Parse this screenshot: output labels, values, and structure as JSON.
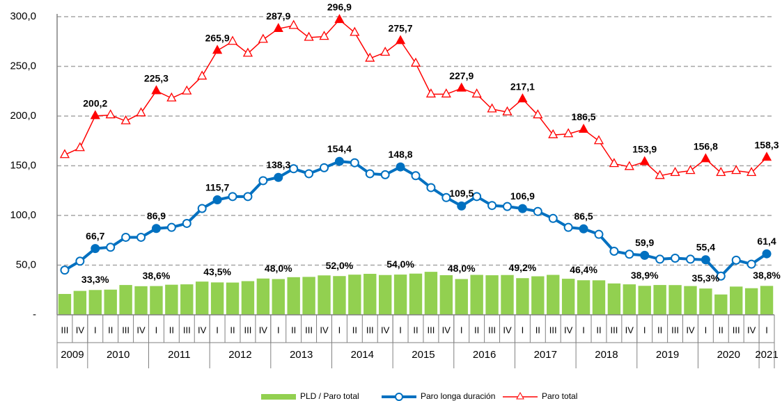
{
  "chart_data": {
    "type": "combo",
    "categories": [
      "III",
      "IV",
      "I",
      "II",
      "III",
      "IV",
      "I",
      "II",
      "III",
      "IV",
      "I",
      "II",
      "III",
      "IV",
      "I",
      "II",
      "III",
      "IV",
      "I",
      "II",
      "III",
      "IV",
      "I",
      "II",
      "III",
      "IV",
      "I",
      "II",
      "III",
      "IV",
      "I",
      "II",
      "III",
      "IV",
      "I",
      "II",
      "III",
      "IV",
      "I",
      "II",
      "III",
      "IV",
      "I",
      "II",
      "III",
      "IV",
      "I"
    ],
    "years": [
      "2009",
      "2010",
      "2011",
      "2012",
      "2013",
      "2014",
      "2015",
      "2016",
      "2017",
      "2018",
      "2019",
      "2020",
      "2021"
    ],
    "ylim": [
      0,
      300
    ],
    "yticks": [
      {
        "value": 0,
        "label": "-"
      },
      {
        "value": 50,
        "label": "50,0"
      },
      {
        "value": 100,
        "label": "100,0"
      },
      {
        "value": 150,
        "label": "150,0"
      },
      {
        "value": 200,
        "label": "200,0"
      },
      {
        "value": 250,
        "label": "250,0"
      },
      {
        "value": 300,
        "label": "300,0"
      }
    ],
    "y2lim": [
      0,
      400
    ],
    "grid": true,
    "legend": "bottom",
    "series": [
      {
        "name": "PLD / Paro total",
        "type": "bar",
        "axis": "y2",
        "color": "#92d050",
        "values": [
          28.0,
          32.1,
          33.3,
          33.8,
          40.0,
          38.4,
          38.6,
          40.4,
          40.9,
          44.6,
          43.5,
          43.3,
          45.2,
          48.7,
          48.0,
          50.5,
          50.9,
          52.9,
          52.0,
          53.9,
          55.0,
          53.4,
          54.0,
          55.3,
          57.7,
          53.2,
          48.0,
          53.6,
          53.1,
          53.4,
          49.2,
          51.7,
          53.6,
          48.4,
          46.4,
          46.3,
          42.1,
          40.9,
          38.9,
          40.0,
          39.9,
          38.6,
          35.3,
          27.3,
          37.9,
          35.7,
          38.8
        ],
        "value_labels": [
          null,
          null,
          "33,3%",
          null,
          null,
          null,
          "38,6%",
          null,
          null,
          null,
          "43,5%",
          null,
          null,
          null,
          "48,0%",
          null,
          null,
          null,
          "52,0%",
          null,
          null,
          null,
          "54,0%",
          null,
          null,
          null,
          "48,0%",
          null,
          null,
          null,
          "49,2%",
          null,
          null,
          null,
          "46,4%",
          null,
          null,
          null,
          "38,9%",
          null,
          null,
          null,
          "35,3%",
          null,
          null,
          null,
          "38,8%"
        ]
      },
      {
        "name": "Paro longa duración",
        "type": "line",
        "marker": "circle",
        "color": "#0070c0",
        "values": [
          45,
          54,
          66.7,
          68,
          78,
          78,
          86.9,
          88,
          92,
          107,
          115.7,
          119,
          119,
          135,
          138.3,
          147,
          142,
          148,
          154.4,
          153,
          142,
          141,
          148.8,
          140,
          128,
          118,
          109.5,
          119,
          110,
          109,
          106.9,
          104,
          97,
          88,
          86.5,
          81,
          64,
          61,
          59.9,
          56,
          57,
          56,
          55.4,
          39,
          55,
          51,
          61.4
        ],
        "value_labels": [
          null,
          null,
          "66,7",
          null,
          null,
          null,
          "86,9",
          null,
          null,
          null,
          "115,7",
          null,
          null,
          null,
          "138,3",
          null,
          null,
          null,
          "154,4",
          null,
          null,
          null,
          "148,8",
          null,
          null,
          null,
          "109,5",
          null,
          null,
          null,
          "106,9",
          null,
          null,
          null,
          "86,5",
          null,
          null,
          null,
          "59,9",
          null,
          null,
          null,
          "55,4",
          null,
          null,
          null,
          "61,4"
        ]
      },
      {
        "name": "Paro total",
        "type": "line",
        "marker": "triangle",
        "color": "#ff0000",
        "values": [
          161,
          168,
          200.2,
          201,
          195,
          203,
          225.3,
          218,
          225,
          240,
          265.9,
          275,
          263,
          277,
          287.9,
          291,
          279,
          280,
          296.9,
          284,
          258,
          264,
          275.7,
          253,
          222,
          222,
          227.9,
          222,
          207,
          204,
          217.1,
          201,
          181,
          182,
          186.5,
          175,
          152,
          149,
          153.9,
          140,
          143,
          145,
          156.8,
          143,
          145,
          143,
          158.3
        ],
        "value_labels": [
          null,
          null,
          "200,2",
          null,
          null,
          null,
          "225,3",
          null,
          null,
          null,
          "265,9",
          null,
          null,
          null,
          "287,9",
          null,
          null,
          null,
          "296,9",
          null,
          null,
          null,
          "275,7",
          null,
          null,
          null,
          "227,9",
          null,
          null,
          null,
          "217,1",
          null,
          null,
          null,
          "186,5",
          null,
          null,
          null,
          "153,9",
          null,
          null,
          null,
          "156,8",
          null,
          null,
          null,
          "158,3"
        ]
      }
    ]
  }
}
